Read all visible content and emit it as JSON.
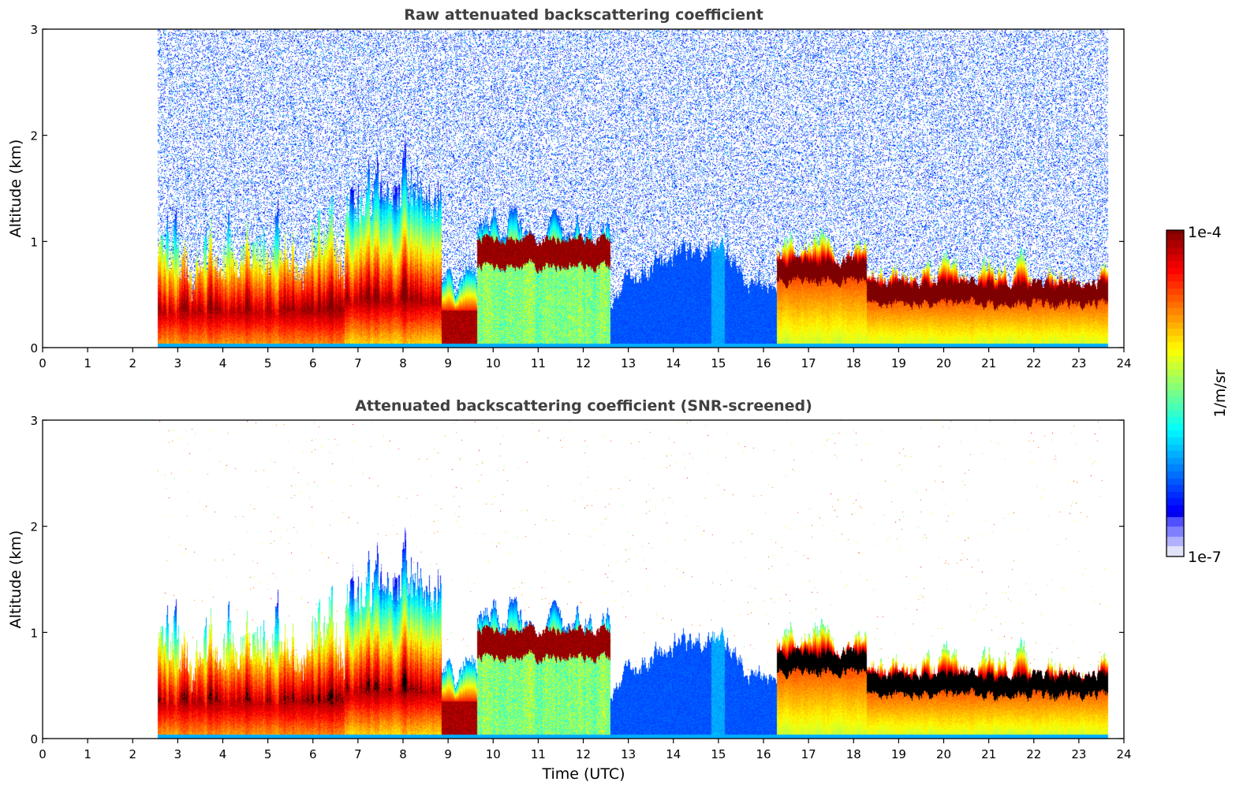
{
  "chart_data": [
    {
      "type": "heatmap",
      "title": "Raw attenuated backscattering coefficient",
      "xlabel": "",
      "ylabel": "Altitude (km)",
      "xlim": [
        0,
        24
      ],
      "ylim": [
        0,
        3
      ],
      "x_ticks": [
        "0",
        "1",
        "2",
        "3",
        "4",
        "5",
        "6",
        "7",
        "8",
        "9",
        "10",
        "11",
        "12",
        "13",
        "14",
        "15",
        "16",
        "17",
        "18",
        "19",
        "20",
        "21",
        "22",
        "23",
        "24"
      ],
      "y_ticks": [
        "0",
        "1",
        "2",
        "3"
      ],
      "data_time_range": [
        2.55,
        23.65
      ],
      "screened": false,
      "segments": [
        {
          "t0": 2.55,
          "t1": 6.7,
          "regime": "convective",
          "layer_top_km": 0.75,
          "peak_km": 0.35
        },
        {
          "t0": 6.7,
          "t1": 8.85,
          "regime": "convective",
          "layer_top_km": 1.3,
          "peak_km": 0.45
        },
        {
          "t0": 8.85,
          "t1": 9.65,
          "regime": "dense-low",
          "layer_top_km": 0.7,
          "peak_km": 0.15
        },
        {
          "t0": 9.65,
          "t1": 12.6,
          "regime": "elevated-layer",
          "layer_top_km": 1.15,
          "peak_km": 0.9
        },
        {
          "t0": 12.6,
          "t1": 16.3,
          "regime": "clear-low-signal",
          "layer_top_km": 0.9,
          "peak_km": 0.2
        },
        {
          "t0": 16.3,
          "t1": 18.3,
          "regime": "stratified-layer",
          "layer_top_km": 0.95,
          "peak_km": 0.72
        },
        {
          "t0": 18.3,
          "t1": 23.65,
          "regime": "stratified-layer",
          "layer_top_km": 0.63,
          "peak_km": 0.5
        }
      ]
    },
    {
      "type": "heatmap",
      "title": "Attenuated backscattering coefficient (SNR-screened)",
      "xlabel": "Time (UTC)",
      "ylabel": "Altitude (km)",
      "xlim": [
        0,
        24
      ],
      "ylim": [
        0,
        3
      ],
      "x_ticks": [
        "0",
        "1",
        "2",
        "3",
        "4",
        "5",
        "6",
        "7",
        "8",
        "9",
        "10",
        "11",
        "12",
        "13",
        "14",
        "15",
        "16",
        "17",
        "18",
        "19",
        "20",
        "21",
        "22",
        "23",
        "24"
      ],
      "y_ticks": [
        "0",
        "1",
        "2",
        "3"
      ],
      "data_time_range": [
        2.55,
        23.65
      ],
      "screened": true,
      "segments": [
        {
          "t0": 2.55,
          "t1": 6.7,
          "regime": "convective",
          "layer_top_km": 0.75,
          "peak_km": 0.35
        },
        {
          "t0": 6.7,
          "t1": 8.85,
          "regime": "convective",
          "layer_top_km": 1.3,
          "peak_km": 0.45
        },
        {
          "t0": 8.85,
          "t1": 9.65,
          "regime": "dense-low",
          "layer_top_km": 0.7,
          "peak_km": 0.15
        },
        {
          "t0": 9.65,
          "t1": 12.6,
          "regime": "elevated-layer",
          "layer_top_km": 1.15,
          "peak_km": 0.9
        },
        {
          "t0": 12.6,
          "t1": 16.3,
          "regime": "clear-low-signal",
          "layer_top_km": 0.9,
          "peak_km": 0.2
        },
        {
          "t0": 16.3,
          "t1": 18.3,
          "regime": "stratified-layer",
          "layer_top_km": 0.95,
          "peak_km": 0.72
        },
        {
          "t0": 18.3,
          "t1": 23.65,
          "regime": "stratified-layer",
          "layer_top_km": 0.63,
          "peak_km": 0.5
        }
      ]
    }
  ],
  "colorbar": {
    "label": "1/m/sr",
    "max_label": "1e-4",
    "min_label": "1e-7",
    "vmin": 1e-07,
    "vmax": 0.0001,
    "scale": "log",
    "colormap": "jet"
  }
}
